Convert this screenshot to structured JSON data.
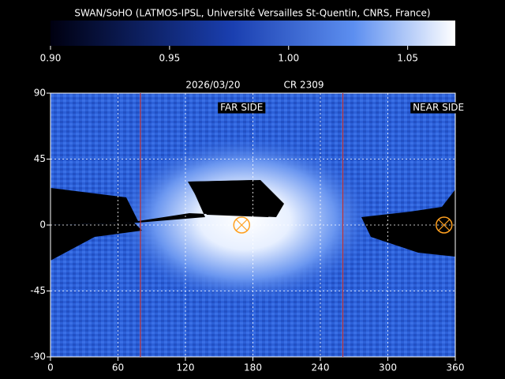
{
  "chart_data": {
    "type": "heatmap",
    "title": "SWAN/SoHO (LATMOS-IPSL, Université Versailles St-Quentin, CNRS, France)",
    "date": "2026/03/20",
    "rotation": "CR 2309",
    "colorbar": {
      "clim": [
        0.9,
        1.07
      ],
      "ticks": [
        {
          "value": 0.9,
          "label": "0.90"
        },
        0.95,
        {
          "value": 1.0,
          "label": "1.00"
        },
        1.05
      ]
    },
    "xlim": [
      0,
      360
    ],
    "xticks": [
      0,
      60,
      120,
      180,
      240,
      300,
      360
    ],
    "ylim": [
      -90,
      90
    ],
    "yticks": [
      90,
      45,
      0,
      -45,
      -90
    ],
    "grid": true,
    "meridians": {
      "color": "#c03030",
      "lon": [
        80,
        260
      ]
    },
    "markers": {
      "color": "#ffa020",
      "lon": [
        170,
        350
      ],
      "lat": [
        0,
        0
      ]
    },
    "annotations": [
      {
        "text": "FAR SIDE",
        "lon": 170,
        "lat": 80
      },
      {
        "text": "NEAR SIDE",
        "lon": 345,
        "lat": 80
      }
    ]
  }
}
